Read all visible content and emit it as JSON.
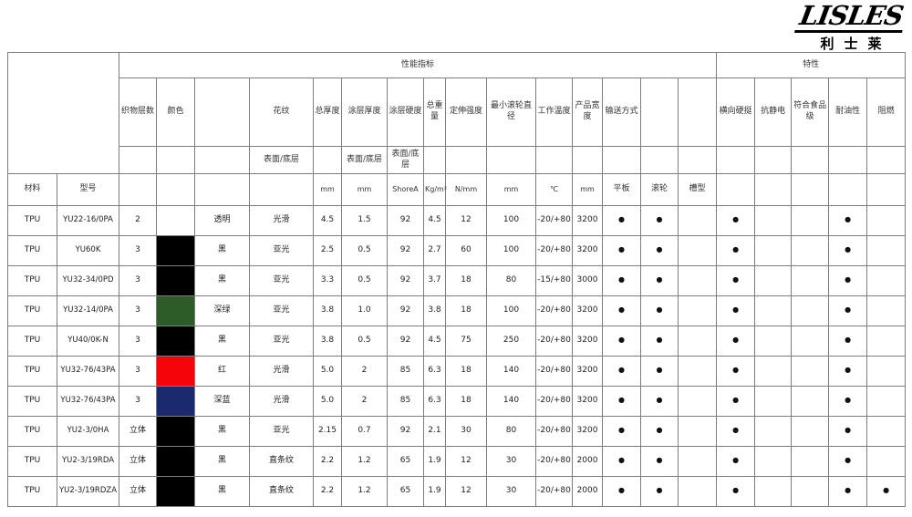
{
  "logo": {
    "brand": "LISLES",
    "chinese": "利士莱"
  },
  "symbols": {
    "dot": "●"
  },
  "colors": {
    "border": "#7d7d7d",
    "black": "#000000",
    "dark_green": "#2e5c29",
    "red": "#f50509",
    "dark_blue": "#1b2a6e"
  },
  "table": {
    "top_headers": {
      "performance": "性能指标",
      "characteristics": "特性"
    },
    "col_headers": {
      "material": "材料",
      "model": "型号",
      "fabric_layers": "织物层数",
      "color": "颜色",
      "pattern": "花纹",
      "total_thickness": "总厚度",
      "coating_thickness": "涂层厚度",
      "coating_hardness": "涂层硬度",
      "total_weight": "总重量",
      "tensile_strength": "定伸强度",
      "min_roller_diameter": "最小滚轮直径",
      "working_temp": "工作温度",
      "product_width": "产品宽度",
      "conveying_method": "输送方式",
      "lateral_stiffness": "横向硬挺",
      "anti_static": "抗静电",
      "food_grade": "符合食品级",
      "oil_resistance": "耐油性",
      "flame_retardant": "阻燃",
      "surface_bottom": "表面/底层"
    },
    "units": {
      "mm": "mm",
      "shore": "ShoreA",
      "kg_m2": "Kg/m²",
      "n_mm": "N/mm",
      "celsius": "℃",
      "flat": "平板",
      "roller": "滚轮",
      "trough": "槽型"
    },
    "rows": [
      {
        "material": "TPU",
        "model": "YU22-16/0PA",
        "layers": "2",
        "swatch": null,
        "color_name": "透明",
        "pattern": "光滑",
        "total_thickness": "4.5",
        "coating_thickness": "1.5",
        "coating_hardness": "92",
        "total_weight": "4.5",
        "tensile": "12",
        "min_roller": "100",
        "temp": "-20/+80",
        "width": "3200",
        "flat": true,
        "roller": true,
        "trough": false,
        "lateral": true,
        "antistatic": false,
        "food": false,
        "oil": true,
        "flame": false
      },
      {
        "material": "TPU",
        "model": "YU60K",
        "layers": "3",
        "swatch": "#000000",
        "color_name": "黑",
        "pattern": "亚光",
        "total_thickness": "2.5",
        "coating_thickness": "0.5",
        "coating_hardness": "92",
        "total_weight": "2.7",
        "tensile": "60",
        "min_roller": "100",
        "temp": "-20/+80",
        "width": "3200",
        "flat": true,
        "roller": true,
        "trough": false,
        "lateral": true,
        "antistatic": false,
        "food": false,
        "oil": true,
        "flame": false
      },
      {
        "material": "TPU",
        "model": "YU32-34/0PD",
        "layers": "3",
        "swatch": "#000000",
        "color_name": "黑",
        "pattern": "亚光",
        "total_thickness": "3.3",
        "coating_thickness": "0.5",
        "coating_hardness": "92",
        "total_weight": "3.7",
        "tensile": "18",
        "min_roller": "80",
        "temp": "-15/+80",
        "width": "3000",
        "flat": true,
        "roller": true,
        "trough": false,
        "lateral": true,
        "antistatic": false,
        "food": false,
        "oil": true,
        "flame": false
      },
      {
        "material": "TPU",
        "model": "YU32-14/0PA",
        "layers": "3",
        "swatch": "#2e5c29",
        "color_name": "深绿",
        "pattern": "亚光",
        "total_thickness": "3.8",
        "coating_thickness": "1.0",
        "coating_hardness": "92",
        "total_weight": "3.8",
        "tensile": "18",
        "min_roller": "100",
        "temp": "-20/+80",
        "width": "3200",
        "flat": true,
        "roller": true,
        "trough": false,
        "lateral": true,
        "antistatic": false,
        "food": false,
        "oil": true,
        "flame": false
      },
      {
        "material": "TPU",
        "model": "YU40/0K-N",
        "layers": "3",
        "swatch": "#000000",
        "color_name": "黑",
        "pattern": "亚光",
        "total_thickness": "3.8",
        "coating_thickness": "0.5",
        "coating_hardness": "92",
        "total_weight": "4.5",
        "tensile": "75",
        "min_roller": "250",
        "temp": "-20/+80",
        "width": "3200",
        "flat": true,
        "roller": true,
        "trough": false,
        "lateral": true,
        "antistatic": false,
        "food": false,
        "oil": true,
        "flame": false
      },
      {
        "material": "TPU",
        "model": "YU32-76/43PA",
        "layers": "3",
        "swatch": "#f50509",
        "color_name": "红",
        "pattern": "光滑",
        "total_thickness": "5.0",
        "coating_thickness": "2",
        "coating_hardness": "85",
        "total_weight": "6.3",
        "tensile": "18",
        "min_roller": "140",
        "temp": "-20/+80",
        "width": "3200",
        "flat": true,
        "roller": true,
        "trough": false,
        "lateral": true,
        "antistatic": false,
        "food": false,
        "oil": true,
        "flame": false
      },
      {
        "material": "TPU",
        "model": "YU32-76/43PA",
        "layers": "3",
        "swatch": "#1b2a6e",
        "color_name": "深蓝",
        "pattern": "光滑",
        "total_thickness": "5.0",
        "coating_thickness": "2",
        "coating_hardness": "85",
        "total_weight": "6.3",
        "tensile": "18",
        "min_roller": "140",
        "temp": "-20/+80",
        "width": "3200",
        "flat": true,
        "roller": true,
        "trough": false,
        "lateral": true,
        "antistatic": false,
        "food": false,
        "oil": true,
        "flame": false
      },
      {
        "material": "TPU",
        "model": "YU2-3/0HA",
        "layers": "立体",
        "swatch": "#000000",
        "color_name": "黑",
        "pattern": "亚光",
        "total_thickness": "2.15",
        "coating_thickness": "0.7",
        "coating_hardness": "92",
        "total_weight": "2.1",
        "tensile": "30",
        "min_roller": "80",
        "temp": "-20/+80",
        "width": "3200",
        "flat": true,
        "roller": true,
        "trough": false,
        "lateral": true,
        "antistatic": false,
        "food": false,
        "oil": true,
        "flame": false
      },
      {
        "material": "TPU",
        "model": "YU2-3/19RDA",
        "layers": "立体",
        "swatch": "#000000",
        "color_name": "黑",
        "pattern": "直条纹",
        "total_thickness": "2.2",
        "coating_thickness": "1.2",
        "coating_hardness": "65",
        "total_weight": "1.9",
        "tensile": "12",
        "min_roller": "30",
        "temp": "-20/+80",
        "width": "2000",
        "flat": true,
        "roller": true,
        "trough": false,
        "lateral": true,
        "antistatic": false,
        "food": false,
        "oil": true,
        "flame": false
      },
      {
        "material": "TPU",
        "model": "YU2-3/19RDZA",
        "layers": "立体",
        "swatch": "#000000",
        "color_name": "黑",
        "pattern": "直条纹",
        "total_thickness": "2.2",
        "coating_thickness": "1.2",
        "coating_hardness": "65",
        "total_weight": "1.9",
        "tensile": "12",
        "min_roller": "30",
        "temp": "-20/+80",
        "width": "2000",
        "flat": true,
        "roller": true,
        "trough": false,
        "lateral": true,
        "antistatic": false,
        "food": false,
        "oil": true,
        "flame": true
      }
    ]
  }
}
